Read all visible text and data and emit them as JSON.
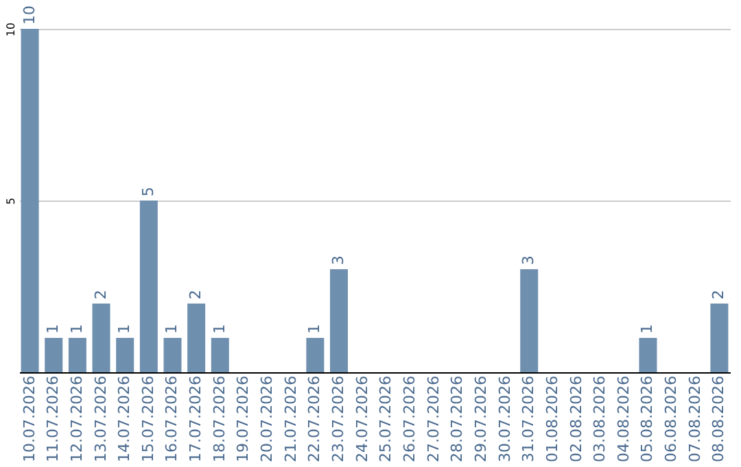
{
  "chart_data": {
    "type": "bar",
    "categories": [
      "10.07.2026",
      "11.07.2026",
      "12.07.2026",
      "13.07.2026",
      "14.07.2026",
      "15.07.2026",
      "16.07.2026",
      "17.07.2026",
      "18.07.2026",
      "19.07.2026",
      "20.07.2026",
      "21.07.2026",
      "22.07.2026",
      "23.07.2026",
      "24.07.2026",
      "25.07.2026",
      "26.07.2026",
      "27.07.2026",
      "28.07.2026",
      "29.07.2026",
      "30.07.2026",
      "31.07.2026",
      "01.08.2026",
      "02.08.2026",
      "03.08.2026",
      "04.08.2026",
      "05.08.2026",
      "06.08.2026",
      "07.08.2026",
      "08.08.2026"
    ],
    "values": [
      10,
      1,
      1,
      2,
      1,
      5,
      1,
      2,
      1,
      0,
      0,
      0,
      1,
      3,
      0,
      0,
      0,
      0,
      0,
      0,
      0,
      3,
      0,
      0,
      0,
      0,
      1,
      0,
      0,
      2
    ],
    "value_labels": [
      "10",
      "1",
      "1",
      "2",
      "1",
      "5",
      "1",
      "2",
      "1",
      null,
      null,
      null,
      "1",
      "3",
      null,
      null,
      null,
      null,
      null,
      null,
      null,
      "3",
      null,
      null,
      null,
      null,
      "1",
      null,
      null,
      "2"
    ],
    "color": "#6f8faf",
    "ylim": [
      0,
      10
    ],
    "yticks": [
      5,
      10
    ],
    "grid": "y"
  }
}
